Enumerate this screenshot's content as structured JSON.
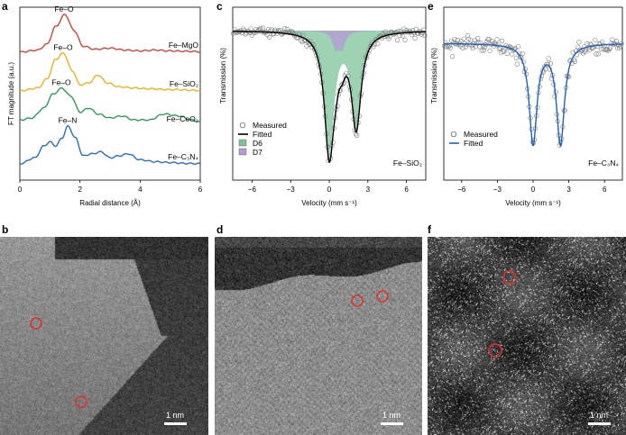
{
  "panels": {
    "a": {
      "letter": "a"
    },
    "b": {
      "letter": "b"
    },
    "c": {
      "letter": "c"
    },
    "d": {
      "letter": "d"
    },
    "e": {
      "letter": "e"
    },
    "f": {
      "letter": "f"
    }
  },
  "scale_bar_label": "1 nm",
  "chart_data": [
    {
      "panel": "a",
      "type": "line",
      "xlabel": "Radial distance (Å)",
      "ylabel": "FT magnitude (a.u.)",
      "xlim": [
        0,
        6
      ],
      "xticks": [
        0,
        2,
        4,
        6
      ],
      "series": [
        {
          "name": "Fe–MgO",
          "color": "#d0433a",
          "peak_label": "Fe–O",
          "points": [
            [
              0,
              0.05
            ],
            [
              0.6,
              0.1
            ],
            [
              0.9,
              0.25
            ],
            [
              1.2,
              0.7
            ],
            [
              1.5,
              1.0
            ],
            [
              1.8,
              0.6
            ],
            [
              2.1,
              0.2
            ],
            [
              2.5,
              0.12
            ],
            [
              3.0,
              0.15
            ],
            [
              3.5,
              0.1
            ],
            [
              4.0,
              0.08
            ],
            [
              4.5,
              0.1
            ],
            [
              5.0,
              0.08
            ],
            [
              5.5,
              0.07
            ],
            [
              6.0,
              0.06
            ]
          ]
        },
        {
          "name": "Fe–SiO₂",
          "color": "#f2b01e",
          "peak_label": "Fe–O",
          "points": [
            [
              0,
              0.05
            ],
            [
              0.6,
              0.12
            ],
            [
              0.9,
              0.35
            ],
            [
              1.2,
              0.85
            ],
            [
              1.45,
              1.0
            ],
            [
              1.75,
              0.55
            ],
            [
              2.0,
              0.2
            ],
            [
              2.3,
              0.25
            ],
            [
              2.6,
              0.45
            ],
            [
              2.9,
              0.25
            ],
            [
              3.3,
              0.15
            ],
            [
              3.8,
              0.12
            ],
            [
              4.3,
              0.1
            ],
            [
              5.0,
              0.08
            ],
            [
              6.0,
              0.06
            ]
          ]
        },
        {
          "name": "Fe–CeO₂",
          "color": "#2e9a5a",
          "peak_label": "Fe–O",
          "points": [
            [
              0,
              0.2
            ],
            [
              0.4,
              0.25
            ],
            [
              0.8,
              0.5
            ],
            [
              1.1,
              0.85
            ],
            [
              1.4,
              1.0
            ],
            [
              1.7,
              0.8
            ],
            [
              2.0,
              0.4
            ],
            [
              2.3,
              0.5
            ],
            [
              2.6,
              0.35
            ],
            [
              3.0,
              0.25
            ],
            [
              3.4,
              0.3
            ],
            [
              3.8,
              0.2
            ],
            [
              4.3,
              0.2
            ],
            [
              4.8,
              0.35
            ],
            [
              5.3,
              0.3
            ],
            [
              5.7,
              0.2
            ],
            [
              6.0,
              0.15
            ]
          ]
        },
        {
          "name": "Fe–C₃N₄",
          "color": "#2a6cc4",
          "peak_label": "Fe–N",
          "points": [
            [
              0,
              0.05
            ],
            [
              0.5,
              0.2
            ],
            [
              0.8,
              0.5
            ],
            [
              1.0,
              0.6
            ],
            [
              1.2,
              0.5
            ],
            [
              1.4,
              0.7
            ],
            [
              1.6,
              1.0
            ],
            [
              1.85,
              0.7
            ],
            [
              2.1,
              0.25
            ],
            [
              2.4,
              0.3
            ],
            [
              2.7,
              0.35
            ],
            [
              3.0,
              0.2
            ],
            [
              3.3,
              0.25
            ],
            [
              3.6,
              0.3
            ],
            [
              4.0,
              0.15
            ],
            [
              4.5,
              0.1
            ],
            [
              5.0,
              0.08
            ],
            [
              5.5,
              0.06
            ],
            [
              6.0,
              0.05
            ]
          ]
        }
      ]
    },
    {
      "panel": "c",
      "type": "scatter",
      "sample_label": "Fe–SiO₂",
      "xlabel": "Velocity (mm s⁻¹)",
      "ylabel": "Transmission (%)",
      "xlim": [
        -7.5,
        7.5
      ],
      "xticks": [
        -6,
        -3,
        0,
        3,
        6
      ],
      "legend": {
        "position": "bottom-left",
        "entries": [
          {
            "label": "Measured",
            "kind": "circle"
          },
          {
            "label": "Fitted",
            "kind": "line",
            "color": "#000000"
          },
          {
            "label": "D6",
            "kind": "box",
            "color": "#7cc39a"
          },
          {
            "label": "D7",
            "kind": "box",
            "color": "#b69ad6"
          }
        ]
      },
      "components": [
        {
          "name": "D6",
          "color": "#7cc39a",
          "lines": [
            {
              "center": 0.0,
              "width": 0.9,
              "depth": 0.9
            },
            {
              "center": 2.1,
              "width": 0.9,
              "depth": 0.7
            }
          ]
        },
        {
          "name": "D7",
          "color": "#b69ad6",
          "lines": [
            {
              "center": 0.5,
              "width": 0.6,
              "depth": 0.12
            },
            {
              "center": 1.0,
              "width": 0.6,
              "depth": 0.12
            }
          ]
        }
      ]
    },
    {
      "panel": "e",
      "type": "scatter",
      "sample_label": "Fe–C₃N₄",
      "xlabel": "Velocity (mm s⁻¹)",
      "ylabel": "Transmission (%)",
      "xlim": [
        -7.5,
        7.5
      ],
      "xticks": [
        -6,
        -3,
        0,
        3,
        6
      ],
      "legend": {
        "position": "bottom-left",
        "entries": [
          {
            "label": "Measured",
            "kind": "circle"
          },
          {
            "label": "Fitted",
            "kind": "line",
            "color": "#1f5fbf"
          }
        ]
      },
      "components": [
        {
          "name": "Fitted",
          "color": "#1f5fbf",
          "lines": [
            {
              "center": 0.0,
              "width": 0.8,
              "depth": 0.85
            },
            {
              "center": 2.3,
              "width": 0.8,
              "depth": 0.85
            }
          ]
        }
      ]
    }
  ]
}
